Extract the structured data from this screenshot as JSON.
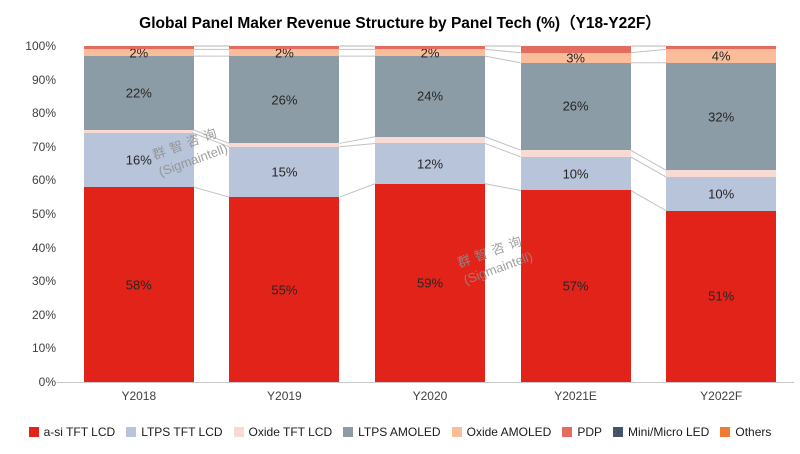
{
  "watermark": {
    "line1": "群智咨询",
    "line2": "(Sigmaintell)"
  },
  "chart_data": {
    "type": "bar",
    "subtype": "stacked-100-percent",
    "title": "Global Panel Maker Revenue Structure by Panel Tech (%)（Y18-Y22F）",
    "categories": [
      "Y2018",
      "Y2019",
      "Y2020",
      "Y2021E",
      "Y2022F"
    ],
    "series": [
      {
        "name": "a-si TFT LCD",
        "color": "#e2231a",
        "labeled": true,
        "values": [
          58,
          55,
          59,
          57,
          51
        ]
      },
      {
        "name": "LTPS TFT LCD",
        "color": "#b7c4da",
        "labeled": true,
        "values": [
          16,
          15,
          12,
          10,
          10
        ]
      },
      {
        "name": "Oxide TFT LCD",
        "color": "#f7dad2",
        "labeled": false,
        "values": [
          1,
          1,
          2,
          2,
          2
        ]
      },
      {
        "name": "LTPS AMOLED",
        "color": "#8c9ca6",
        "labeled": true,
        "values": [
          22,
          26,
          24,
          26,
          32
        ]
      },
      {
        "name": "Oxide AMOLED",
        "color": "#f9be99",
        "labeled": true,
        "values": [
          2,
          2,
          2,
          3,
          4
        ]
      },
      {
        "name": "PDP",
        "color": "#e36c5e",
        "labeled": false,
        "values": [
          1,
          1,
          1,
          2,
          1
        ]
      },
      {
        "name": "Mini/Micro LED",
        "color": "#44546a",
        "labeled": false,
        "values": [
          0,
          0,
          0,
          0,
          0
        ]
      },
      {
        "name": "Others",
        "color": "#ee7c31",
        "labeled": false,
        "values": [
          0,
          0,
          0,
          0,
          0
        ]
      }
    ],
    "y_ticks": [
      "0%",
      "10%",
      "20%",
      "30%",
      "40%",
      "50%",
      "60%",
      "70%",
      "80%",
      "90%",
      "100%"
    ],
    "ylim": [
      0,
      100
    ],
    "grid": false,
    "legend_position": "bottom",
    "connector_lines": true,
    "connector_color": "#b3b3b3"
  }
}
